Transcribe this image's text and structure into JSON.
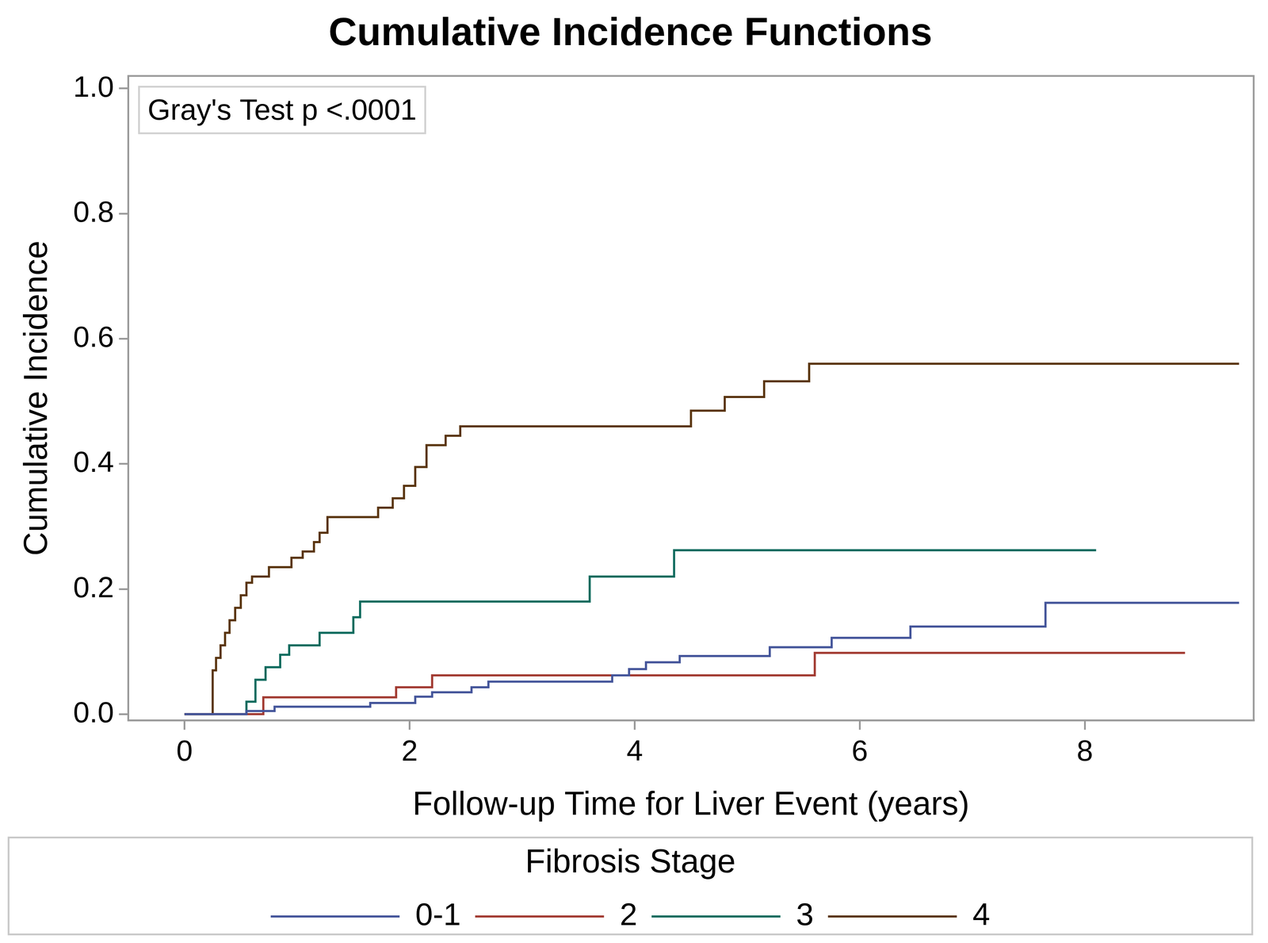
{
  "chart_data": {
    "type": "line",
    "title": "Cumulative Incidence Functions",
    "x_label": "Follow-up Time for Liver Event (years)",
    "y_label": "Cumulative Incidence",
    "annotation": "Gray's Test p <.0001",
    "legend_title": "Fibrosis Stage",
    "legend": "bottom",
    "line_style": "step",
    "grid": false,
    "xlim": [
      -0.5,
      9.5
    ],
    "xticks": [
      0,
      2,
      4,
      6,
      8
    ],
    "ylim": [
      -0.01,
      1.02
    ],
    "yticks": [
      {
        "value": 0,
        "label": "0.0"
      },
      0.2,
      0.4,
      0.6,
      0.8,
      {
        "value": 1,
        "label": "1.0"
      }
    ],
    "series": [
      {
        "name": "0-1",
        "color": "#44559a",
        "x": [
          0,
          0.55,
          0.8,
          1.65,
          2.05,
          2.2,
          2.55,
          2.7,
          3.8,
          3.95,
          4.1,
          4.4,
          5.2,
          5.75,
          6.45,
          7.65,
          9.37
        ],
        "values": [
          0,
          0.005,
          0.012,
          0.018,
          0.028,
          0.035,
          0.043,
          0.052,
          0.062,
          0.072,
          0.083,
          0.093,
          0.107,
          0.122,
          0.14,
          0.178,
          0.178
        ]
      },
      {
        "name": "2",
        "color": "#a23b32",
        "x": [
          0,
          0.7,
          1.88,
          2.2,
          5.6,
          8.89
        ],
        "values": [
          0,
          0.027,
          0.043,
          0.062,
          0.098,
          0.098
        ]
      },
      {
        "name": "3",
        "color": "#0e6b5e",
        "x": [
          0,
          0.55,
          0.63,
          0.72,
          0.85,
          0.93,
          1.2,
          1.5,
          1.56,
          3.6,
          4.35,
          8.1
        ],
        "values": [
          0,
          0.02,
          0.055,
          0.075,
          0.095,
          0.11,
          0.13,
          0.155,
          0.18,
          0.22,
          0.262,
          0.262
        ]
      },
      {
        "name": "4",
        "color": "#5a3510",
        "x": [
          0,
          0.25,
          0.28,
          0.32,
          0.36,
          0.4,
          0.45,
          0.5,
          0.55,
          0.6,
          0.75,
          0.95,
          1.05,
          1.15,
          1.2,
          1.27,
          1.72,
          1.85,
          1.95,
          2.05,
          2.15,
          2.32,
          2.45,
          4.5,
          4.8,
          5.15,
          5.55,
          9.37
        ],
        "values": [
          0,
          0.07,
          0.09,
          0.11,
          0.13,
          0.15,
          0.17,
          0.19,
          0.21,
          0.22,
          0.235,
          0.25,
          0.26,
          0.275,
          0.29,
          0.315,
          0.33,
          0.345,
          0.365,
          0.395,
          0.43,
          0.445,
          0.46,
          0.485,
          0.507,
          0.532,
          0.56,
          0.56
        ]
      }
    ]
  }
}
